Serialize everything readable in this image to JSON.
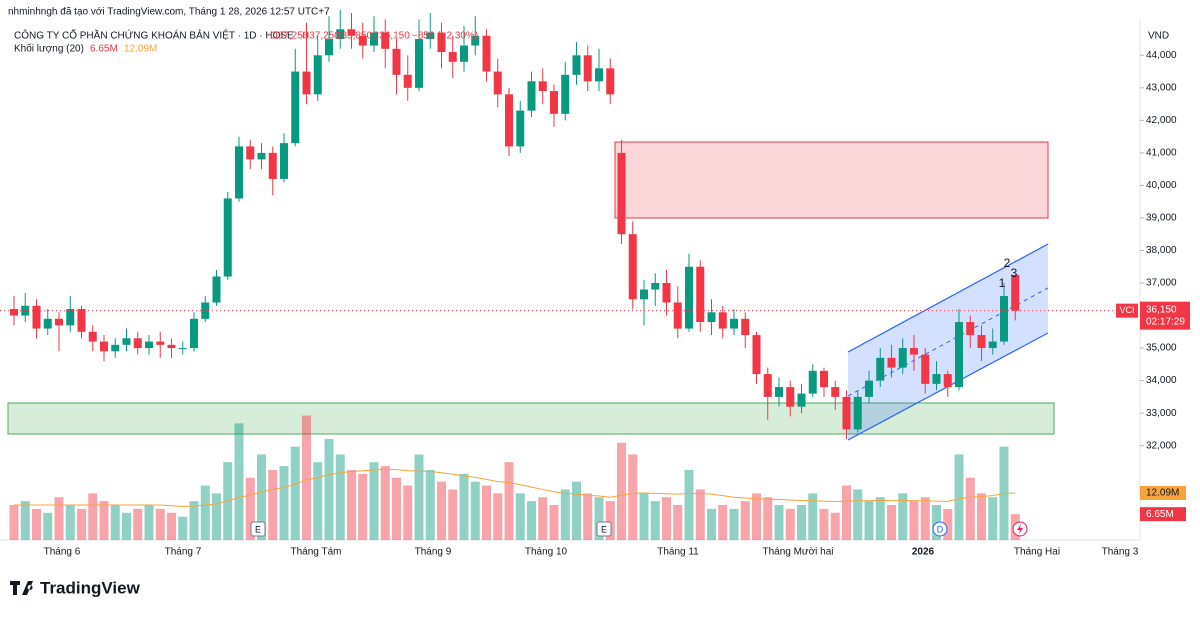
{
  "header": {
    "credit": "nhminhngh đã tạo với TradingView.com, Tháng 1 28, 2026 12:57 UTC+7",
    "symbol_title": "CÔNG TY CỔ PHẦN CHỨNG KHOÁN BẢN VIỆT · 1D · HOSE",
    "ohlc": [
      "O37,250",
      "H37,250",
      "L35,850",
      "C36,150",
      "−850 (−2.30%)"
    ]
  },
  "chart_data": {
    "type": "candlestick",
    "currency": "VND",
    "symbol": "VCI",
    "last_price_label": "36,150",
    "countdown": "02:17:29",
    "up_color": "#089981",
    "down_color": "#f23645",
    "ylim": [
      29100,
      45700
    ],
    "yticks": [
      {
        "value": 32000,
        "label": "32,000"
      },
      {
        "value": 33000,
        "label": "33,000"
      },
      {
        "value": 34000,
        "label": "34,000"
      },
      {
        "value": 35000,
        "label": "35,000"
      },
      {
        "value": 36000,
        "label": "36,000"
      },
      {
        "value": 37000,
        "label": "37,000"
      },
      {
        "value": 38000,
        "label": "38,000"
      },
      {
        "value": 39000,
        "label": "39,000"
      },
      {
        "value": 40000,
        "label": "40,000"
      },
      {
        "value": 41000,
        "label": "41,000"
      },
      {
        "value": 42000,
        "label": "42,000"
      },
      {
        "value": 43000,
        "label": "43,000"
      },
      {
        "value": 44000,
        "label": "44,000"
      }
    ],
    "x_labels": [
      "Tháng 6",
      "Tháng 7",
      "Tháng Tám",
      "Tháng 9",
      "Tháng 10",
      "Tháng 11",
      "Tháng Mười hai",
      "2026",
      "Tháng Hai",
      "Tháng 3"
    ],
    "open": [
      36200,
      36000,
      36300,
      35600,
      35900,
      35700,
      36200,
      35500,
      35200,
      34900,
      35100,
      35300,
      35000,
      35200,
      35100,
      35000,
      35000,
      35900,
      36400,
      37200,
      39600,
      41200,
      40800,
      41000,
      40200,
      41300,
      43500,
      42800,
      44000,
      44500,
      44800,
      44600,
      44300,
      44700,
      44200,
      43400,
      43000,
      44500,
      44700,
      44100,
      43800,
      44300,
      44600,
      43500,
      42800,
      41200,
      42300,
      43200,
      42900,
      42200,
      43400,
      44000,
      43200,
      43600,
      41000,
      38500,
      36500,
      36800,
      37000,
      36400,
      35600,
      37500,
      35800,
      36100,
      35600,
      35900,
      35400,
      34200,
      33500,
      33800,
      33200,
      33600,
      34300,
      33800,
      33500,
      32500,
      33500,
      34000,
      34700,
      34400,
      35000,
      34800,
      33900,
      34200,
      33800,
      35800,
      35400,
      35000,
      35200,
      37250
    ],
    "high": [
      36600,
      36700,
      36500,
      36200,
      36100,
      36600,
      36300,
      35700,
      35400,
      35300,
      35600,
      35500,
      35400,
      35500,
      35300,
      35200,
      36100,
      36600,
      37400,
      39800,
      41500,
      41400,
      41300,
      41200,
      41600,
      44200,
      45000,
      44600,
      45200,
      45400,
      45300,
      45000,
      45200,
      45100,
      44500,
      44000,
      45100,
      45300,
      45000,
      44600,
      44900,
      45200,
      44800,
      43900,
      43000,
      42600,
      43500,
      43600,
      43100,
      43800,
      44400,
      44300,
      44200,
      43900,
      41400,
      38900,
      37100,
      37300,
      37400,
      36900,
      37900,
      37700,
      36500,
      36300,
      36200,
      36100,
      35500,
      34400,
      34100,
      34000,
      33900,
      34500,
      34400,
      34000,
      33700,
      33700,
      34300,
      35000,
      35100,
      35300,
      35400,
      35000,
      34600,
      34300,
      36200,
      36000,
      35700,
      35600,
      37000,
      37250
    ],
    "low": [
      35700,
      35800,
      35300,
      35400,
      34900,
      35500,
      35300,
      34900,
      34600,
      34700,
      34900,
      34800,
      34800,
      34700,
      34700,
      34800,
      34900,
      35800,
      36300,
      37100,
      39500,
      40500,
      40500,
      39700,
      40100,
      41200,
      42500,
      42600,
      43800,
      44200,
      44200,
      43900,
      44100,
      43600,
      42800,
      42600,
      42900,
      44200,
      43600,
      43300,
      43500,
      44000,
      43200,
      42400,
      40900,
      41000,
      42100,
      42500,
      41800,
      42000,
      43100,
      42900,
      42900,
      42500,
      38200,
      36200,
      35700,
      36300,
      36000,
      35300,
      35500,
      35500,
      35400,
      35300,
      35400,
      35000,
      33900,
      32800,
      33200,
      32900,
      33000,
      33500,
      33500,
      33100,
      32200,
      32400,
      33300,
      33800,
      34100,
      34200,
      34300,
      33600,
      33700,
      33500,
      33700,
      35000,
      34600,
      34800,
      35100,
      35850
    ],
    "close": [
      36000,
      36300,
      35600,
      35900,
      35700,
      36200,
      35500,
      35200,
      34900,
      35100,
      35300,
      35000,
      35200,
      35100,
      35000,
      35000,
      35900,
      36400,
      37200,
      39600,
      41200,
      40800,
      41000,
      40200,
      41300,
      43500,
      42800,
      44000,
      44500,
      44800,
      44600,
      44300,
      44700,
      44200,
      43400,
      43000,
      44500,
      44700,
      44100,
      43800,
      44300,
      44600,
      43500,
      42800,
      41200,
      42300,
      43200,
      42900,
      42200,
      43400,
      44000,
      43200,
      43600,
      42800,
      38500,
      36500,
      36800,
      37000,
      36400,
      35600,
      37500,
      35800,
      36100,
      35600,
      35900,
      35400,
      34200,
      33500,
      33800,
      33200,
      33600,
      34300,
      33800,
      33500,
      32500,
      33500,
      34000,
      34700,
      34400,
      35000,
      34800,
      33900,
      34200,
      33800,
      35800,
      35400,
      35000,
      35200,
      36600,
      36150
    ],
    "volume_lim": [
      0,
      36000000
    ],
    "volume": {
      "name": "Khối lượng (20)",
      "last_label": "6.65M",
      "values": [
        9000000,
        10000000,
        8000000,
        7000000,
        11000000,
        9000000,
        8000000,
        12000000,
        10000000,
        9000000,
        7000000,
        8000000,
        9000000,
        8000000,
        7000000,
        6000000,
        10000000,
        14000000,
        12000000,
        20000000,
        30000000,
        16000000,
        22000000,
        18000000,
        19000000,
        24000000,
        32000000,
        20000000,
        26000000,
        22000000,
        18000000,
        17000000,
        20000000,
        19000000,
        16000000,
        14000000,
        22000000,
        18000000,
        15000000,
        13000000,
        17000000,
        15000000,
        14000000,
        12000000,
        20000000,
        12000000,
        10000000,
        11000000,
        9000000,
        13000000,
        15000000,
        12000000,
        11000000,
        10000000,
        25000000,
        22000000,
        12000000,
        10000000,
        11000000,
        9000000,
        18000000,
        13000000,
        8000000,
        9000000,
        8000000,
        10000000,
        12000000,
        11000000,
        9000000,
        8000000,
        9000000,
        12000000,
        8000000,
        7000000,
        14000000,
        13000000,
        10000000,
        11000000,
        9000000,
        12000000,
        10000000,
        11000000,
        9000000,
        8000000,
        22000000,
        16000000,
        12000000,
        11000000,
        24000000,
        6650000
      ]
    },
    "volume_ma": {
      "color": "#f7a53b",
      "last_label": "12.09M",
      "values": [
        9000000,
        9000000,
        9000000,
        9000000,
        9000000,
        9000000,
        9000000,
        9000000,
        9000000,
        9000000,
        9000000,
        9000000,
        9000000,
        9000000,
        8800000,
        8600000,
        8700000,
        9000000,
        9300000,
        10000000,
        11000000,
        11500000,
        12300000,
        13000000,
        13500000,
        14300000,
        15500000,
        16000000,
        16800000,
        17300000,
        17600000,
        17800000,
        18000000,
        18200000,
        18100000,
        17800000,
        17700000,
        17600000,
        17300000,
        16900000,
        16500000,
        16100000,
        15600000,
        15000000,
        14800000,
        14200000,
        13600000,
        13000000,
        12400000,
        12000000,
        11800000,
        11500000,
        11300000,
        11000000,
        11500000,
        12000000,
        12100000,
        12000000,
        11900000,
        11800000,
        12000000,
        12000000,
        11800000,
        11400000,
        11000000,
        10800000,
        10600000,
        10500000,
        10400000,
        10300000,
        10200000,
        10100000,
        10000000,
        9900000,
        10000000,
        10100000,
        10100000,
        10200000,
        10100000,
        10200000,
        10100000,
        10100000,
        10000000,
        9900000,
        10600000,
        11000000,
        11200000,
        11400000,
        12000000,
        12090000
      ]
    },
    "annotations": [
      "1",
      "2",
      "3"
    ],
    "event_markers": [
      "E",
      "E",
      "D"
    ]
  },
  "footer": {
    "brand": "TradingView"
  }
}
